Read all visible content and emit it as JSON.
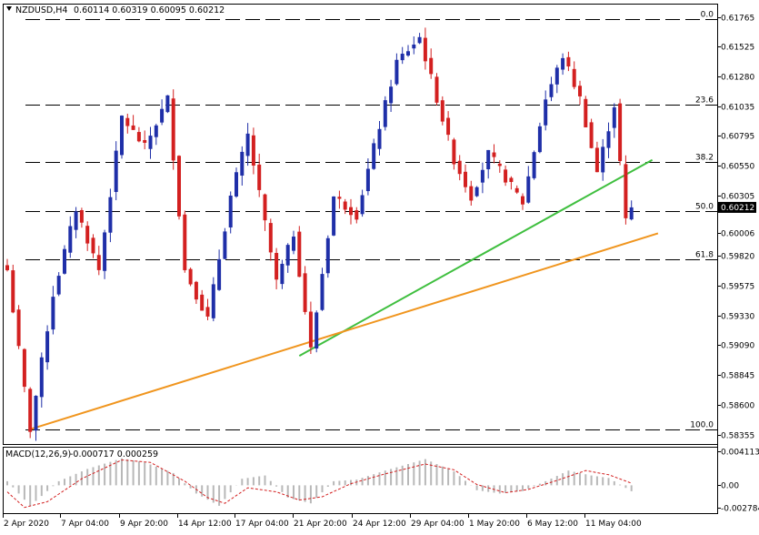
{
  "header": {
    "symbol": "NZDUSD,H4",
    "ohlc": "0.60114 0.60319 0.60095 0.60212"
  },
  "macd_header": {
    "label": "MACD(12,26,9)",
    "values": "-0.000717 0.000259"
  },
  "colors": {
    "bull": "#1f2fa8",
    "bear": "#d32020",
    "green_line": "#3fbf3f",
    "orange_line": "#f0951e",
    "grid": "#000000",
    "macd_hist": "#b8b8b8",
    "macd_signal": "#d32020"
  },
  "chart_data": [
    {
      "type": "candlestick",
      "title": "",
      "ylim": [
        0.5828,
        0.61868
      ],
      "price_ticks": [
        "0.61765",
        "0.61525",
        "0.61280",
        "0.61035",
        "0.60795",
        "0.60550",
        "0.60305",
        "0.60006",
        "0.59820",
        "0.59575",
        "0.59330",
        "0.59090",
        "0.58845",
        "0.58600",
        "0.58355"
      ],
      "current_price": "0.60212",
      "time_labels": [
        "2 Apr 2020",
        "7 Apr 04:00",
        "9 Apr 20:00",
        "14 Apr 12:00",
        "17 Apr 04:00",
        "21 Apr 20:00",
        "24 Apr 12:00",
        "29 Apr 04:00",
        "1 May 20:00",
        "6 May 12:00",
        "11 May 04:00"
      ],
      "fibonacci_levels": [
        {
          "label": "0.0",
          "price": 0.6175
        },
        {
          "label": "23.6",
          "price": 0.6105
        },
        {
          "label": "38.2",
          "price": 0.6058
        },
        {
          "label": "50.0",
          "price": 0.6018
        },
        {
          "label": "61.8",
          "price": 0.5979
        },
        {
          "label": "100.0",
          "price": 0.584
        }
      ],
      "trendlines": [
        {
          "name": "green",
          "from": [
            51,
            0.59
          ],
          "to": [
            112,
            0.606
          ]
        },
        {
          "name": "orange",
          "from": [
            4,
            0.584
          ],
          "to": [
            113,
            0.6
          ]
        }
      ],
      "anchors": [
        [
          0,
          0.597
        ],
        [
          4,
          0.584
        ],
        [
          8,
          0.595
        ],
        [
          12,
          0.602
        ],
        [
          16,
          0.597
        ],
        [
          20,
          0.6095
        ],
        [
          24,
          0.607
        ],
        [
          28,
          0.611
        ],
        [
          31,
          0.597
        ],
        [
          35,
          0.593
        ],
        [
          39,
          0.603
        ],
        [
          42,
          0.608
        ],
        [
          47,
          0.596
        ],
        [
          50,
          0.6
        ],
        [
          53,
          0.5905
        ],
        [
          57,
          0.603
        ],
        [
          61,
          0.6015
        ],
        [
          64,
          0.607
        ],
        [
          68,
          0.614
        ],
        [
          72,
          0.616
        ],
        [
          75,
          0.611
        ],
        [
          78,
          0.606
        ],
        [
          81,
          0.603
        ],
        [
          84,
          0.6065
        ],
        [
          87,
          0.6045
        ],
        [
          90,
          0.6025
        ],
        [
          94,
          0.611
        ],
        [
          97,
          0.6145
        ],
        [
          100,
          0.611
        ],
        [
          103,
          0.605
        ],
        [
          106,
          0.6105
        ],
        [
          108,
          0.601
        ],
        [
          109,
          0.60212
        ]
      ]
    },
    {
      "type": "macd",
      "title": "",
      "ylim": [
        -0.0034,
        0.0046
      ],
      "ticks": [
        "0.004113",
        "0.00",
        "-0.002784"
      ],
      "hist_anchors": [
        [
          0,
          0.0005
        ],
        [
          4,
          -0.0025
        ],
        [
          9,
          0.0005
        ],
        [
          14,
          0.002
        ],
        [
          20,
          0.0033
        ],
        [
          24,
          0.0028
        ],
        [
          29,
          0.0015
        ],
        [
          33,
          -0.001
        ],
        [
          37,
          -0.0025
        ],
        [
          41,
          0.0008
        ],
        [
          45,
          0.0012
        ],
        [
          49,
          -0.0015
        ],
        [
          53,
          -0.0022
        ],
        [
          57,
          0.0005
        ],
        [
          61,
          0.0007
        ],
        [
          66,
          0.0018
        ],
        [
          73,
          0.0032
        ],
        [
          78,
          0.0017
        ],
        [
          82,
          -0.0006
        ],
        [
          86,
          -0.001
        ],
        [
          90,
          -0.0007
        ],
        [
          94,
          0.0005
        ],
        [
          98,
          0.0018
        ],
        [
          102,
          0.0012
        ],
        [
          105,
          0.0009
        ],
        [
          109,
          -0.00072
        ]
      ],
      "signal_anchors": [
        [
          0,
          -0.0008
        ],
        [
          3,
          -0.0027
        ],
        [
          7,
          -0.002
        ],
        [
          13,
          0.0008
        ],
        [
          20,
          0.0031
        ],
        [
          25,
          0.0028
        ],
        [
          31,
          0.0005
        ],
        [
          35,
          -0.0015
        ],
        [
          38,
          -0.0022
        ],
        [
          42,
          -0.0003
        ],
        [
          47,
          -0.0008
        ],
        [
          51,
          -0.0018
        ],
        [
          55,
          -0.0014
        ],
        [
          60,
          0.0002
        ],
        [
          66,
          0.0014
        ],
        [
          73,
          0.0026
        ],
        [
          78,
          0.0019
        ],
        [
          82,
          0.0001
        ],
        [
          87,
          -0.0009
        ],
        [
          91,
          -0.0005
        ],
        [
          96,
          0.0006
        ],
        [
          101,
          0.0018
        ],
        [
          105,
          0.0013
        ],
        [
          109,
          0.00026
        ]
      ]
    }
  ]
}
